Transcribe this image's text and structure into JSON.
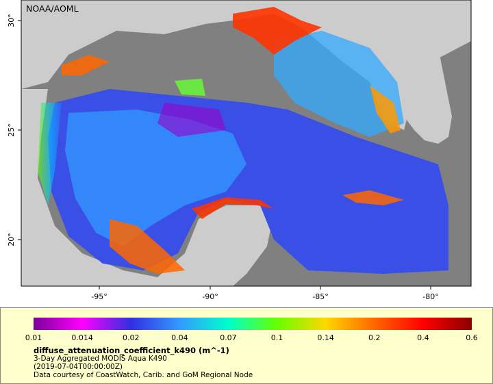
{
  "credit": "NOAA/AOML",
  "map": {
    "lon_ticks": [
      "-95°",
      "-90°",
      "-85°",
      "-80°"
    ],
    "lat_ticks": [
      "30°",
      "25°",
      "20°"
    ],
    "land_color": "#cccccc",
    "nodata_color": "#808080",
    "border_color": "#888888"
  },
  "legend": {
    "colorbar_stops": [
      "#7a0099",
      "#ff00ff",
      "#3030e0",
      "#3399ff",
      "#00ffcc",
      "#66ff00",
      "#ffd700",
      "#ff6600",
      "#ff0000",
      "#8b0000"
    ],
    "tick_labels": [
      "0.01",
      "0.014",
      "0.02",
      "0.04",
      "0.07",
      "0.1",
      "0.14",
      "0.2",
      "0.4",
      "0.6"
    ],
    "variable": "diffuse_attenuation_coefficient_k490 (m^-1)",
    "dataset": "3-Day Aggregated MODIS Aqua K490",
    "time": "(2019-07-04T00:00:00Z)",
    "courtesy": "Data courtesy of CoastWatch, Carib. and GoM Regional Node"
  }
}
